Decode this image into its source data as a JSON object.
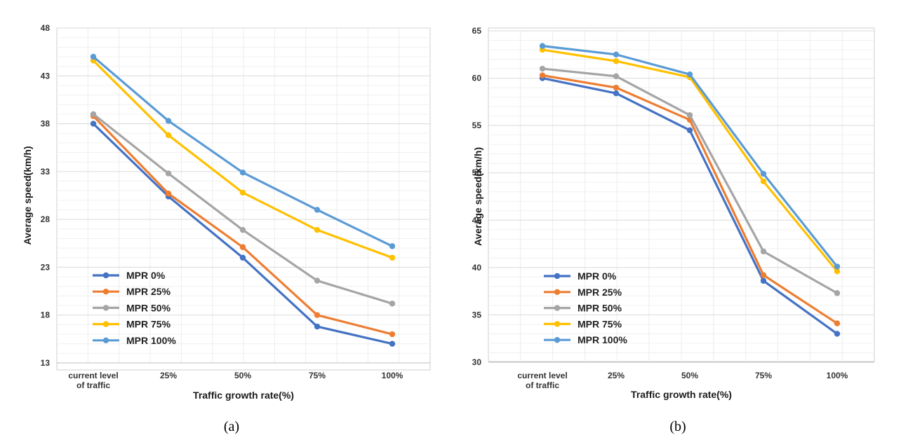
{
  "chart_data": [
    {
      "type": "line",
      "caption": "(a)",
      "categories": [
        "current level\nof traffic",
        "25%",
        "50%",
        "75%",
        "100%"
      ],
      "xlabel": "Traffic growth rate(%)",
      "ylabel": "Average  speed(km/h)",
      "ylim": [
        13,
        48
      ],
      "yticks": [
        13,
        18,
        23,
        28,
        33,
        38,
        43,
        48
      ],
      "grid": true,
      "legend_position": "lower-left",
      "series": [
        {
          "name": "MPR 0%",
          "color": "#4472c4",
          "values": [
            38.0,
            30.4,
            24.0,
            16.8,
            15.0
          ]
        },
        {
          "name": "MPR 25%",
          "color": "#ed7d31",
          "values": [
            38.8,
            30.7,
            25.1,
            18.0,
            16.0
          ]
        },
        {
          "name": "MPR 50%",
          "color": "#a5a5a5",
          "values": [
            39.0,
            32.8,
            26.9,
            21.6,
            19.2
          ]
        },
        {
          "name": "MPR 75%",
          "color": "#ffc000",
          "values": [
            44.6,
            36.8,
            30.8,
            26.9,
            24.0
          ]
        },
        {
          "name": "MPR 100%",
          "color": "#5b9bd5",
          "values": [
            45.0,
            38.3,
            32.9,
            29.0,
            25.2
          ]
        }
      ]
    },
    {
      "type": "line",
      "caption": "(b)",
      "categories": [
        "current level\nof traffic",
        "25%",
        "50%",
        "75%",
        "100%"
      ],
      "xlabel": "Traffic growth rate(%)",
      "ylabel": "Average  speed(km/h)",
      "ylim": [
        30,
        65
      ],
      "yticks": [
        30,
        35,
        40,
        45,
        50,
        55,
        60,
        65
      ],
      "grid": true,
      "legend_position": "lower-left",
      "series": [
        {
          "name": "MPR 0%",
          "color": "#4472c4",
          "values": [
            60.0,
            58.4,
            54.5,
            38.6,
            33.0
          ]
        },
        {
          "name": "MPR 25%",
          "color": "#ed7d31",
          "values": [
            60.3,
            59.0,
            55.6,
            39.2,
            34.1
          ]
        },
        {
          "name": "MPR 50%",
          "color": "#a5a5a5",
          "values": [
            61.0,
            60.2,
            56.1,
            41.7,
            37.3
          ]
        },
        {
          "name": "MPR 75%",
          "color": "#ffc000",
          "values": [
            63.0,
            61.8,
            60.1,
            49.1,
            39.6
          ]
        },
        {
          "name": "MPR 100%",
          "color": "#5b9bd5",
          "values": [
            63.4,
            62.5,
            60.4,
            49.9,
            40.1
          ]
        }
      ]
    }
  ]
}
